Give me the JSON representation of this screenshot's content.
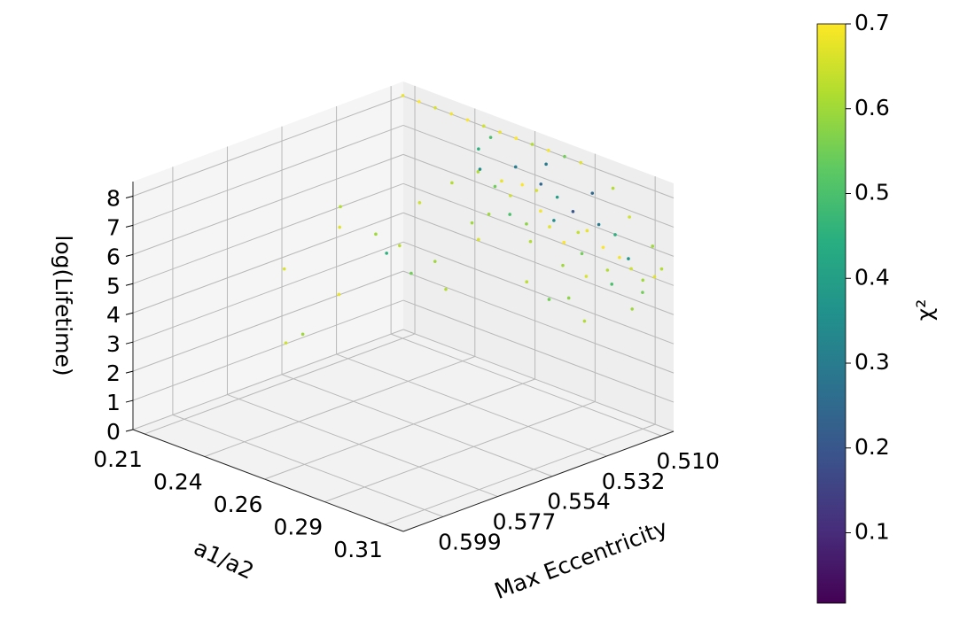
{
  "chart_data": {
    "type": "scatter3d",
    "xlabel": "a1/a2",
    "ylabel": "Max Eccentricity",
    "zlabel": "log(Lifetime)",
    "colorbar_label": "χ²",
    "colormap": "viridis",
    "grid": true,
    "xlim": [
      0.205,
      0.322
    ],
    "ylim": [
      0.505,
      0.615
    ],
    "zlim": [
      0,
      8.5
    ],
    "clim": [
      0.017,
      0.7
    ],
    "xticks": [
      {
        "value": 0.21,
        "label": "0.21"
      },
      {
        "value": 0.236,
        "label": "0.24"
      },
      {
        "value": 0.262,
        "label": "0.26"
      },
      {
        "value": 0.288,
        "label": "0.29"
      },
      {
        "value": 0.314,
        "label": "0.31"
      }
    ],
    "yticks": [
      {
        "value": 0.51,
        "label": "0.510"
      },
      {
        "value": 0.5322,
        "label": "0.532"
      },
      {
        "value": 0.5544,
        "label": "0.554"
      },
      {
        "value": 0.5766,
        "label": "0.577"
      },
      {
        "value": 0.5988,
        "label": "0.599"
      }
    ],
    "zticks": [
      0,
      1,
      2,
      3,
      4,
      5,
      6,
      7,
      8
    ],
    "cticks": [
      0.1,
      0.2,
      0.3,
      0.4,
      0.5,
      0.6,
      0.7
    ],
    "x": [
      0.208,
      0.215,
      0.222,
      0.229,
      0.236,
      0.243,
      0.25,
      0.257,
      0.264,
      0.271,
      0.278,
      0.285,
      0.245,
      0.248,
      0.25,
      0.252,
      0.255,
      0.258,
      0.26,
      0.262,
      0.265,
      0.266,
      0.268,
      0.27,
      0.272,
      0.274,
      0.276,
      0.278,
      0.28,
      0.282,
      0.284,
      0.286,
      0.288,
      0.29,
      0.292,
      0.294,
      0.296,
      0.298,
      0.3,
      0.302,
      0.304,
      0.306,
      0.308,
      0.31,
      0.312,
      0.314,
      0.316,
      0.318,
      0.256,
      0.262,
      0.285,
      0.3,
      0.242,
      0.246,
      0.27,
      0.29,
      0.305,
      0.315,
      0.32,
      0.215,
      0.212,
      0.22,
      0.218,
      0.225,
      0.23,
      0.22,
      0.235,
      0.228,
      0.24,
      0.225,
      0.25,
      0.235,
      0.31,
      0.3,
      0.32,
      0.3
    ],
    "y": [
      0.508,
      0.508,
      0.508,
      0.508,
      0.508,
      0.508,
      0.508,
      0.508,
      0.508,
      0.508,
      0.508,
      0.508,
      0.512,
      0.515,
      0.51,
      0.518,
      0.512,
      0.52,
      0.511,
      0.515,
      0.513,
      0.519,
      0.51,
      0.516,
      0.512,
      0.514,
      0.52,
      0.511,
      0.516,
      0.512,
      0.518,
      0.51,
      0.514,
      0.52,
      0.512,
      0.516,
      0.511,
      0.518,
      0.513,
      0.51,
      0.515,
      0.512,
      0.517,
      0.511,
      0.514,
      0.51,
      0.512,
      0.509,
      0.525,
      0.528,
      0.53,
      0.527,
      0.52,
      0.508,
      0.508,
      0.508,
      0.507,
      0.507,
      0.508,
      0.54,
      0.56,
      0.56,
      0.565,
      0.535,
      0.53,
      0.545,
      0.53,
      0.52,
      0.525,
      0.55,
      0.53,
      0.54,
      0.53,
      0.535,
      0.52,
      0.509
    ],
    "z": [
      8.2,
      8.2,
      8.2,
      8.2,
      8.2,
      8.2,
      8.2,
      8.2,
      8.2,
      8.2,
      8.2,
      8.2,
      7.6,
      7.0,
      6.4,
      7.3,
      6.8,
      6.0,
      7.4,
      6.6,
      7.0,
      6.2,
      6.8,
      5.9,
      7.2,
      6.4,
      5.6,
      6.9,
      6.1,
      5.5,
      6.5,
      5.9,
      6.8,
      5.2,
      6.2,
      5.6,
      6.5,
      5.0,
      5.9,
      6.3,
      5.3,
      5.7,
      5.0,
      5.4,
      5.9,
      5.1,
      4.8,
      5.3,
      5.8,
      5.5,
      4.8,
      4.6,
      6.6,
      7.9,
      7.7,
      7.3,
      6.9,
      6.2,
      5.6,
      5.6,
      4.0,
      2.0,
      1.8,
      4.8,
      4.4,
      5.2,
      3.6,
      5.5,
      4.0,
      3.2,
      3.5,
      4.6,
      4.2,
      4.8,
      4.6,
      7.8
    ],
    "c": [
      0.68,
      0.7,
      0.66,
      0.69,
      0.7,
      0.65,
      0.68,
      0.7,
      0.62,
      0.69,
      0.55,
      0.67,
      0.45,
      0.62,
      0.55,
      0.35,
      0.68,
      0.6,
      0.3,
      0.65,
      0.7,
      0.5,
      0.66,
      0.58,
      0.25,
      0.69,
      0.62,
      0.4,
      0.67,
      0.7,
      0.35,
      0.64,
      0.2,
      0.6,
      0.68,
      0.55,
      0.3,
      0.66,
      0.7,
      0.45,
      0.62,
      0.69,
      0.5,
      0.65,
      0.38,
      0.6,
      0.55,
      0.67,
      0.6,
      0.66,
      0.63,
      0.58,
      0.62,
      0.5,
      0.3,
      0.25,
      0.65,
      0.6,
      0.62,
      0.62,
      0.66,
      0.6,
      0.65,
      0.6,
      0.63,
      0.67,
      0.55,
      0.65,
      0.6,
      0.68,
      0.62,
      0.45,
      0.62,
      0.55,
      0.6,
      0.62
    ]
  }
}
